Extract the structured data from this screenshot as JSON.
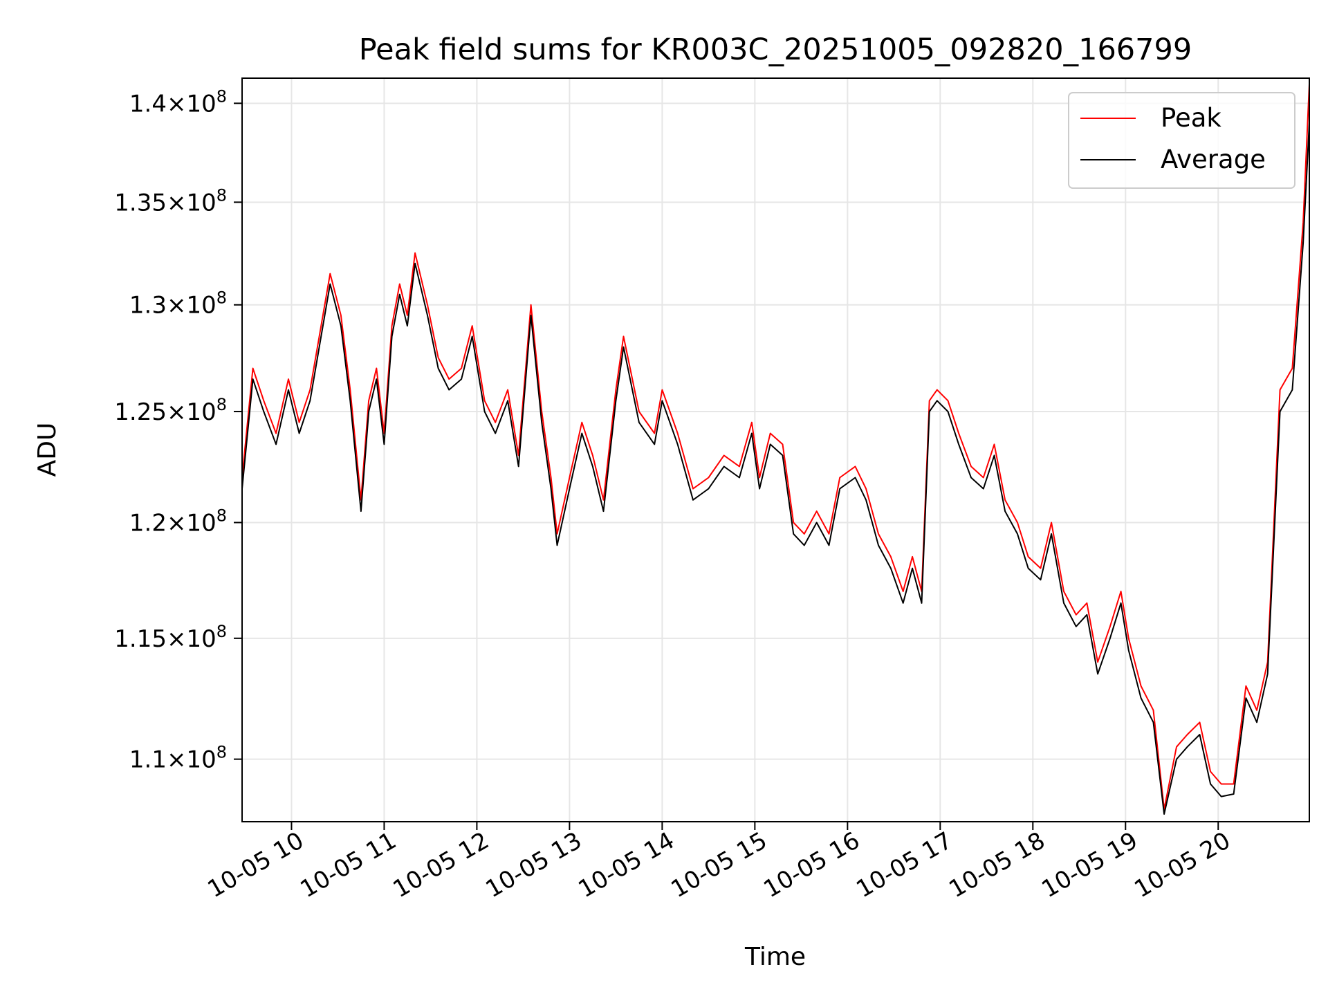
{
  "chart_data": {
    "type": "line",
    "title": "Peak field sums for KR003C_20251005_092820_166799",
    "xlabel": "Time",
    "ylabel": "ADU",
    "y_scale": "log",
    "grid": true,
    "legend_position": "top-right",
    "xlim": [
      "2025-10-05 09:28",
      "2025-10-05 20:59"
    ],
    "ylim": [
      107500000,
      141300000
    ],
    "x_ticks": [
      {
        "value": "2025-10-05 10:00",
        "label": "10-05 10"
      },
      {
        "value": "2025-10-05 11:00",
        "label": "10-05 11"
      },
      {
        "value": "2025-10-05 12:00",
        "label": "10-05 12"
      },
      {
        "value": "2025-10-05 13:00",
        "label": "10-05 13"
      },
      {
        "value": "2025-10-05 14:00",
        "label": "10-05 14"
      },
      {
        "value": "2025-10-05 15:00",
        "label": "10-05 15"
      },
      {
        "value": "2025-10-05 16:00",
        "label": "10-05 16"
      },
      {
        "value": "2025-10-05 17:00",
        "label": "10-05 17"
      },
      {
        "value": "2025-10-05 18:00",
        "label": "10-05 18"
      },
      {
        "value": "2025-10-05 19:00",
        "label": "10-05 19"
      },
      {
        "value": "2025-10-05 20:00",
        "label": "10-05 20"
      }
    ],
    "y_ticks": [
      {
        "value": 110000000,
        "mantissa": "1.1",
        "exponent": "8"
      },
      {
        "value": 115000000,
        "mantissa": "1.15",
        "exponent": "8"
      },
      {
        "value": 120000000,
        "mantissa": "1.2",
        "exponent": "8"
      },
      {
        "value": 125000000,
        "mantissa": "1.25",
        "exponent": "8"
      },
      {
        "value": 130000000,
        "mantissa": "1.3",
        "exponent": "8"
      },
      {
        "value": 135000000,
        "mantissa": "1.35",
        "exponent": "8"
      },
      {
        "value": 140000000,
        "mantissa": "1.4",
        "exponent": "8"
      }
    ],
    "x": [
      "2025-10-05 09:28",
      "2025-10-05 09:35",
      "2025-10-05 09:42",
      "2025-10-05 09:50",
      "2025-10-05 09:58",
      "2025-10-05 10:05",
      "2025-10-05 10:12",
      "2025-10-05 10:18",
      "2025-10-05 10:25",
      "2025-10-05 10:32",
      "2025-10-05 10:38",
      "2025-10-05 10:45",
      "2025-10-05 10:50",
      "2025-10-05 10:55",
      "2025-10-05 11:00",
      "2025-10-05 11:05",
      "2025-10-05 11:10",
      "2025-10-05 11:15",
      "2025-10-05 11:20",
      "2025-10-05 11:28",
      "2025-10-05 11:35",
      "2025-10-05 11:42",
      "2025-10-05 11:50",
      "2025-10-05 11:57",
      "2025-10-05 12:05",
      "2025-10-05 12:12",
      "2025-10-05 12:20",
      "2025-10-05 12:27",
      "2025-10-05 12:35",
      "2025-10-05 12:42",
      "2025-10-05 12:48",
      "2025-10-05 12:52",
      "2025-10-05 13:00",
      "2025-10-05 13:08",
      "2025-10-05 13:15",
      "2025-10-05 13:22",
      "2025-10-05 13:30",
      "2025-10-05 13:35",
      "2025-10-05 13:45",
      "2025-10-05 13:55",
      "2025-10-05 14:00",
      "2025-10-05 14:10",
      "2025-10-05 14:20",
      "2025-10-05 14:30",
      "2025-10-05 14:40",
      "2025-10-05 14:50",
      "2025-10-05 14:58",
      "2025-10-05 15:03",
      "2025-10-05 15:10",
      "2025-10-05 15:18",
      "2025-10-05 15:25",
      "2025-10-05 15:32",
      "2025-10-05 15:40",
      "2025-10-05 15:48",
      "2025-10-05 15:55",
      "2025-10-05 16:05",
      "2025-10-05 16:12",
      "2025-10-05 16:20",
      "2025-10-05 16:28",
      "2025-10-05 16:36",
      "2025-10-05 16:42",
      "2025-10-05 16:48",
      "2025-10-05 16:53",
      "2025-10-05 16:58",
      "2025-10-05 17:05",
      "2025-10-05 17:12",
      "2025-10-05 17:20",
      "2025-10-05 17:28",
      "2025-10-05 17:35",
      "2025-10-05 17:42",
      "2025-10-05 17:50",
      "2025-10-05 17:57",
      "2025-10-05 18:05",
      "2025-10-05 18:12",
      "2025-10-05 18:20",
      "2025-10-05 18:28",
      "2025-10-05 18:35",
      "2025-10-05 18:42",
      "2025-10-05 18:50",
      "2025-10-05 18:57",
      "2025-10-05 19:02",
      "2025-10-05 19:10",
      "2025-10-05 19:18",
      "2025-10-05 19:25",
      "2025-10-05 19:33",
      "2025-10-05 19:40",
      "2025-10-05 19:48",
      "2025-10-05 19:55",
      "2025-10-05 20:02",
      "2025-10-05 20:10",
      "2025-10-05 20:18",
      "2025-10-05 20:25",
      "2025-10-05 20:32",
      "2025-10-05 20:40",
      "2025-10-05 20:48",
      "2025-10-05 20:55",
      "2025-10-05 20:59"
    ],
    "series": [
      {
        "name": "Peak",
        "color": "#ff0000",
        "values": [
          122000000,
          127000000,
          125500000,
          124000000,
          126500000,
          124500000,
          126000000,
          128500000,
          131500000,
          129500000,
          126000000,
          121000000,
          125500000,
          127000000,
          124000000,
          129000000,
          131000000,
          129500000,
          132500000,
          130000000,
          127500000,
          126500000,
          127000000,
          129000000,
          125500000,
          124500000,
          126000000,
          123000000,
          130000000,
          125000000,
          122000000,
          119500000,
          122000000,
          124500000,
          123000000,
          121000000,
          126000000,
          128500000,
          125000000,
          124000000,
          126000000,
          124000000,
          121500000,
          122000000,
          123000000,
          122500000,
          124500000,
          122000000,
          124000000,
          123500000,
          120000000,
          119500000,
          120500000,
          119500000,
          122000000,
          122500000,
          121500000,
          119500000,
          118500000,
          117000000,
          118500000,
          117000000,
          125500000,
          126000000,
          125500000,
          124000000,
          122500000,
          122000000,
          123500000,
          121000000,
          120000000,
          118500000,
          118000000,
          120000000,
          117000000,
          116000000,
          116500000,
          114000000,
          115500000,
          117000000,
          115000000,
          113000000,
          112000000,
          108000000,
          110500000,
          111000000,
          111500000,
          109500000,
          109000000,
          109000000,
          113000000,
          112000000,
          114000000,
          126000000,
          127000000,
          134000000,
          141000000
        ]
      },
      {
        "name": "Average",
        "color": "#000000",
        "values": [
          121500000,
          126500000,
          125000000,
          123500000,
          126000000,
          124000000,
          125500000,
          128000000,
          131000000,
          129000000,
          125500000,
          120500000,
          125000000,
          126500000,
          123500000,
          128500000,
          130500000,
          129000000,
          132000000,
          129500000,
          127000000,
          126000000,
          126500000,
          128500000,
          125000000,
          124000000,
          125500000,
          122500000,
          129500000,
          124500000,
          121500000,
          119000000,
          121500000,
          124000000,
          122500000,
          120500000,
          125500000,
          128000000,
          124500000,
          123500000,
          125500000,
          123500000,
          121000000,
          121500000,
          122500000,
          122000000,
          124000000,
          121500000,
          123500000,
          123000000,
          119500000,
          119000000,
          120000000,
          119000000,
          121500000,
          122000000,
          121000000,
          119000000,
          118000000,
          116500000,
          118000000,
          116500000,
          125000000,
          125500000,
          125000000,
          123500000,
          122000000,
          121500000,
          123000000,
          120500000,
          119500000,
          118000000,
          117500000,
          119500000,
          116500000,
          115500000,
          116000000,
          113500000,
          115000000,
          116500000,
          114500000,
          112500000,
          111500000,
          107800000,
          110000000,
          110500000,
          111000000,
          109000000,
          108500000,
          108600000,
          112500000,
          111500000,
          113500000,
          125000000,
          126000000,
          133000000,
          139000000
        ]
      }
    ]
  }
}
